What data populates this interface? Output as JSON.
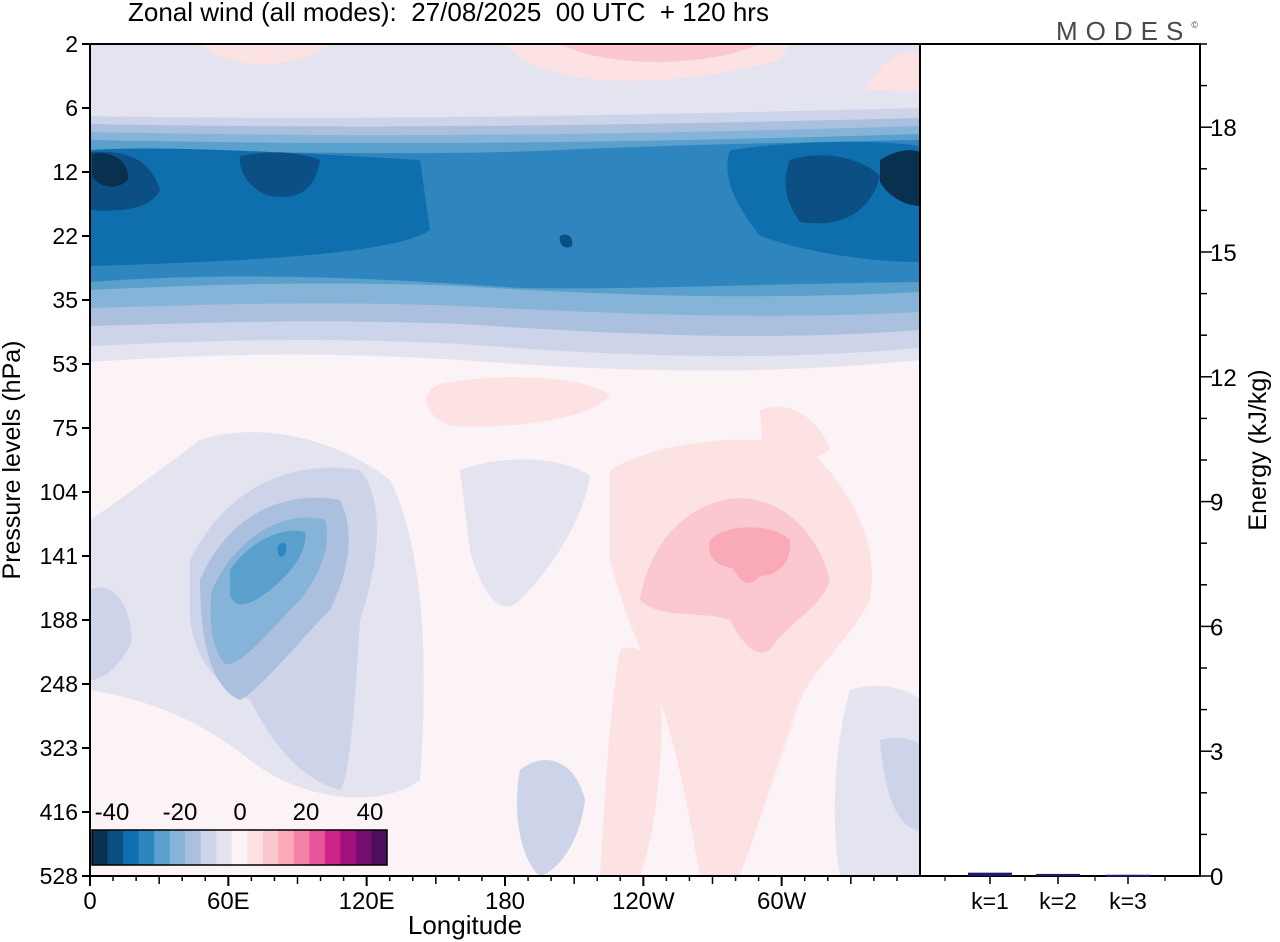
{
  "chart_data": {
    "type": "heatmap",
    "title": "Zonal wind (all modes):  27/08/2025  00 UTC  + 120 hrs",
    "brand": "MODES",
    "brand_mark": "©",
    "main": {
      "xlabel": "Longitude",
      "ylabel": "Pressure levels (hPa)",
      "x_ticks": [
        {
          "lon": 0,
          "label": "0"
        },
        {
          "lon": 60,
          "label": "60E"
        },
        {
          "lon": 120,
          "label": "120E"
        },
        {
          "lon": 180,
          "label": "180"
        },
        {
          "lon": 240,
          "label": "120W"
        },
        {
          "lon": 300,
          "label": "60W"
        }
      ],
      "y_levels": [
        "2",
        "6",
        "12",
        "22",
        "35",
        "53",
        "75",
        "104",
        "141",
        "188",
        "248",
        "323",
        "416",
        "528"
      ],
      "features": [
        {
          "name": "stratospheric easterly jet",
          "p_top": 7,
          "p_bottom": 45,
          "value": -30,
          "core_value": -38
        },
        {
          "name": "upper stratosphere westerly patches",
          "p_top": 2,
          "p_bottom": 5,
          "value": 8
        },
        {
          "name": "easterly maximum 60E-110E",
          "lon_center": 75,
          "p_center": 150,
          "value": -28
        },
        {
          "name": "westerly maximum 80W-110W",
          "lon_center": 287,
          "p_center": 141,
          "value": 15
        }
      ]
    },
    "colorbar": {
      "labels": [
        "-40",
        "-20",
        "0",
        "20",
        "40"
      ],
      "colors": [
        "#08304f",
        "#0b4f85",
        "#0f6fae",
        "#2f86be",
        "#5aa0cc",
        "#86b4d8",
        "#abc0de",
        "#cdd3e8",
        "#e4e4f0",
        "#fbf3f5",
        "#fde2e4",
        "#fcc8cf",
        "#f9a9b8",
        "#f282a6",
        "#e6549a",
        "#cd2587",
        "#a3107a",
        "#760c6e",
        "#4b0f5e"
      ]
    },
    "energy": {
      "ylabel": "Energy (kJ/kg)",
      "ylim": [
        0,
        20
      ],
      "y_ticks": [
        "0",
        "3",
        "6",
        "9",
        "12",
        "15",
        "18"
      ],
      "categories": [
        "k=1",
        "k=2",
        "k=3"
      ],
      "values": [
        0.08,
        0.05,
        0.03
      ],
      "bar_color": "#1c1c6e"
    }
  }
}
